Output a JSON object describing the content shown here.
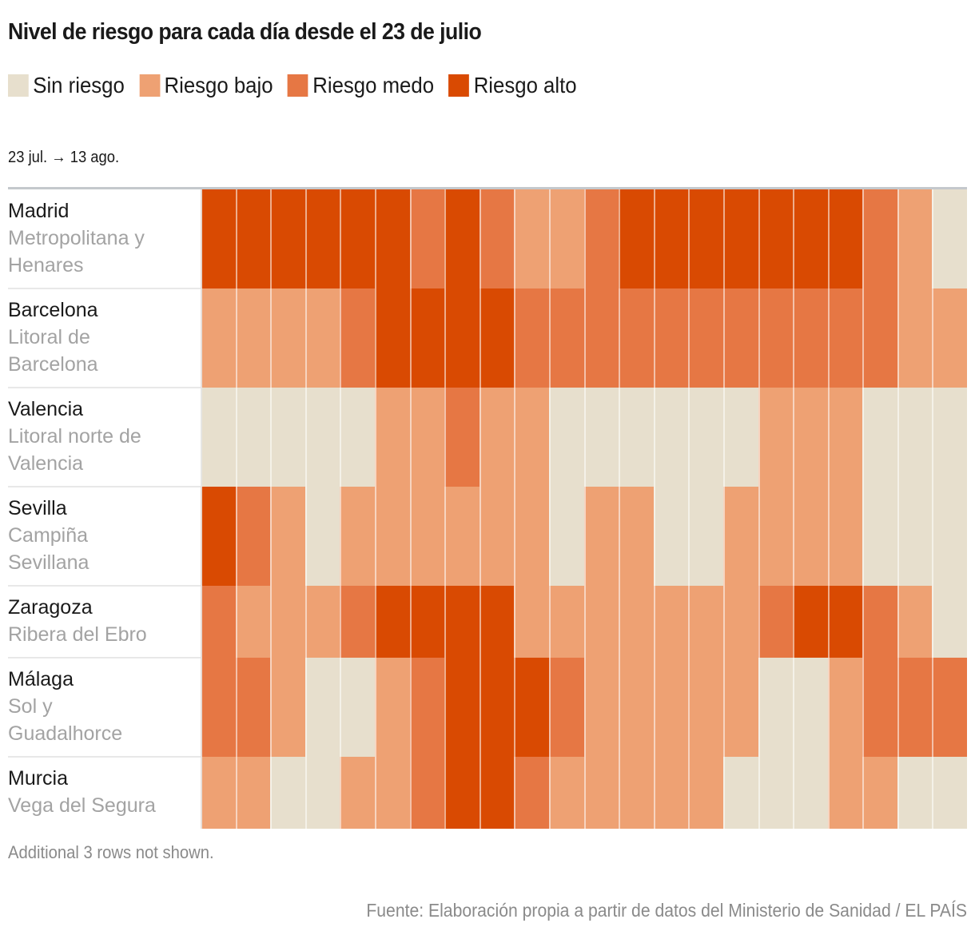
{
  "chart_data": {
    "type": "heatmap",
    "title": "Nivel de riesgo para cada día desde el 23 de julio",
    "date_range_label": "23 jul. → 13 ago.",
    "x_start": "23 jul.",
    "x_end": "13 ago.",
    "n_days": 22,
    "levels": [
      {
        "value": 0,
        "label": "Sin riesgo",
        "color": "#e7dfcd"
      },
      {
        "value": 1,
        "label": "Riesgo bajo",
        "color": "#eea173"
      },
      {
        "value": 2,
        "label": "Riesgo medo",
        "color": "#e67744"
      },
      {
        "value": 3,
        "label": "Riesgo alto",
        "color": "#d94a02"
      }
    ],
    "rows": [
      {
        "city": "Madrid",
        "zone": "Metropolitana y Henares",
        "zone_lines": [
          "Metropolitana y",
          "Henares"
        ],
        "values": [
          3,
          3,
          3,
          3,
          3,
          3,
          2,
          3,
          2,
          1,
          1,
          2,
          3,
          3,
          3,
          3,
          3,
          3,
          3,
          2,
          1,
          0
        ]
      },
      {
        "city": "Barcelona",
        "zone": "Litoral de Barcelona",
        "zone_lines": [
          "Litoral de",
          "Barcelona"
        ],
        "values": [
          1,
          1,
          1,
          1,
          2,
          3,
          3,
          3,
          3,
          2,
          2,
          2,
          2,
          2,
          2,
          2,
          2,
          2,
          2,
          2,
          1,
          1
        ]
      },
      {
        "city": "Valencia",
        "zone": "Litoral norte de Valencia",
        "zone_lines": [
          "Litoral norte de",
          "Valencia"
        ],
        "values": [
          0,
          0,
          0,
          0,
          0,
          1,
          1,
          2,
          1,
          1,
          0,
          0,
          0,
          0,
          0,
          0,
          1,
          1,
          1,
          0,
          0,
          0
        ]
      },
      {
        "city": "Sevilla",
        "zone": "Campiña Sevillana",
        "zone_lines": [
          "Campiña",
          "Sevillana"
        ],
        "values": [
          3,
          2,
          1,
          0,
          1,
          1,
          1,
          1,
          1,
          1,
          0,
          1,
          1,
          0,
          0,
          1,
          1,
          1,
          1,
          0,
          0,
          0
        ]
      },
      {
        "city": "Zaragoza",
        "zone": "Ribera del Ebro",
        "zone_lines": [
          "Ribera del Ebro"
        ],
        "values": [
          2,
          1,
          1,
          1,
          2,
          3,
          3,
          3,
          3,
          1,
          1,
          1,
          1,
          1,
          1,
          1,
          2,
          3,
          3,
          2,
          1,
          0
        ]
      },
      {
        "city": "Málaga",
        "zone": "Sol y Guadalhorce",
        "zone_lines": [
          "Sol y",
          "Guadalhorce"
        ],
        "values": [
          2,
          2,
          1,
          0,
          0,
          1,
          2,
          3,
          3,
          3,
          2,
          1,
          1,
          1,
          1,
          1,
          0,
          0,
          1,
          2,
          2,
          2
        ]
      },
      {
        "city": "Murcia",
        "zone": "Vega del Segura",
        "zone_lines": [
          "Vega del Segura"
        ],
        "values": [
          1,
          1,
          0,
          0,
          1,
          1,
          2,
          3,
          3,
          2,
          1,
          1,
          1,
          1,
          1,
          0,
          0,
          0,
          1,
          1,
          0,
          0
        ]
      }
    ],
    "note": "Additional 3 rows not shown.",
    "source": "Fuente: Elaboración propia a partir de datos del Ministerio de Sanidad / EL PAÍS"
  }
}
